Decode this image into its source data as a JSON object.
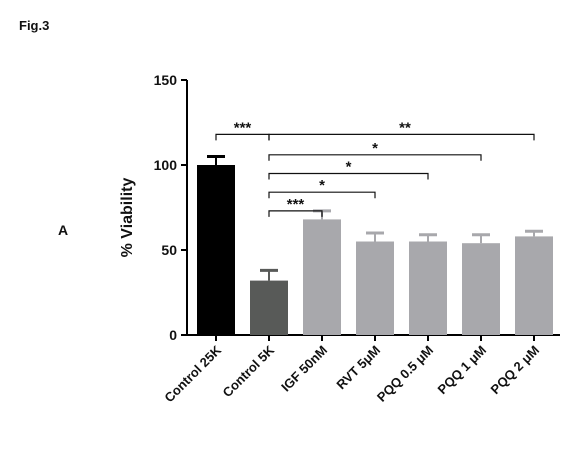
{
  "figure_label": "Fig.3",
  "panel_label": "A",
  "chart_data": {
    "type": "bar",
    "title": "",
    "xlabel": "",
    "ylabel": "% Viability",
    "ylim": [
      0,
      150
    ],
    "yticks": [
      0,
      50,
      100,
      150
    ],
    "grid": false,
    "categories": [
      "Control 25K",
      "Control 5K",
      "IGF 50nM",
      "RVT 5μM",
      "PQQ 0.5 μM",
      "PQQ 1 μM",
      "PQQ 2 μM"
    ],
    "values": [
      100,
      32,
      68,
      55,
      55,
      54,
      58
    ],
    "errors": [
      5,
      6,
      5,
      5,
      4,
      5,
      3
    ],
    "colors": [
      "#000000",
      "#585a58",
      "#a8a8ac",
      "#a8a8ac",
      "#a8a8ac",
      "#a8a8ac",
      "#a8a8ac"
    ],
    "significance": [
      {
        "from": 0,
        "to": 1,
        "label": "***",
        "y": 118
      },
      {
        "from": 1,
        "to": 6,
        "label": "**",
        "y": 118
      },
      {
        "from": 1,
        "to": 5,
        "label": "*",
        "y": 106
      },
      {
        "from": 1,
        "to": 4,
        "label": "*",
        "y": 95
      },
      {
        "from": 1,
        "to": 3,
        "label": "*",
        "y": 84
      },
      {
        "from": 1,
        "to": 2,
        "label": "***",
        "y": 73
      }
    ]
  }
}
